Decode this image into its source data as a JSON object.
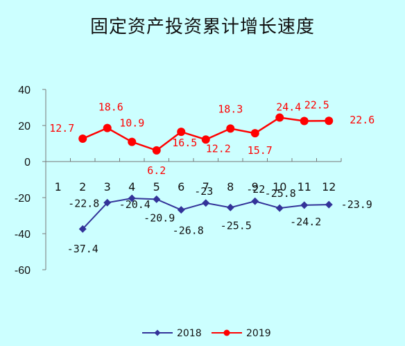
{
  "chart_data": {
    "type": "line",
    "title": "固定资产投资累计增长速度",
    "categories": [
      "1",
      "2",
      "3",
      "4",
      "5",
      "6",
      "7",
      "8",
      "9",
      "10",
      "11",
      "12"
    ],
    "ylim": [
      -60,
      40
    ],
    "yticks": [
      40,
      20,
      0,
      -20,
      -40,
      -60
    ],
    "grid": false,
    "legend_position": "bottom",
    "series": [
      {
        "name": "2018",
        "color": "#333399",
        "marker": "diamond",
        "values": [
          null,
          -37.4,
          -22.8,
          -20.4,
          -20.9,
          -26.8,
          -23,
          -25.5,
          -22,
          -25.8,
          -24.2,
          -23.9
        ],
        "labels": [
          "",
          "-37.4",
          "-22.8",
          "-20.4",
          "-20.9",
          "-26.8",
          "-23",
          "-25.5",
          "-22",
          "-25.8",
          "-24.2",
          "-23.9"
        ]
      },
      {
        "name": "2019",
        "color": "#ff0000",
        "marker": "circle",
        "values": [
          null,
          12.7,
          18.6,
          10.9,
          6.2,
          16.5,
          12.2,
          18.3,
          15.7,
          24.4,
          22.5,
          22.6
        ],
        "labels": [
          "",
          "12.7",
          "18.6",
          "10.9",
          "6.2",
          "16.5",
          "12.2",
          "18.3",
          "15.7",
          "24.4",
          "22.5",
          "22.6"
        ]
      }
    ]
  }
}
